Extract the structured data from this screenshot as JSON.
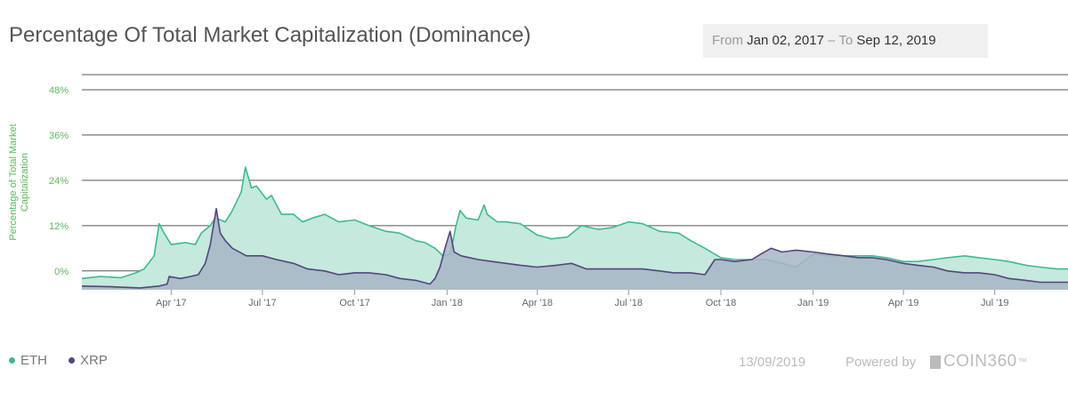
{
  "header": {
    "title": "Percentage Of Total Market Capitalization (Dominance)",
    "from_label": "From",
    "from_date": "Jan 02, 2017",
    "separator": "–",
    "to_label": "To",
    "to_date": "Sep 12, 2019"
  },
  "footer": {
    "date": "13/09/2019",
    "powered_label": "Powered by",
    "logo_text": "COIN360",
    "logo_tm": "™"
  },
  "colors": {
    "eth": "#3dba91",
    "eth_fill": "#c5e9dc",
    "xrp": "#54447f",
    "xrp_fill": "#a6b5c4",
    "axis_label": "#5cb85c",
    "tick": "#666666",
    "grid": "#555555"
  },
  "chart_data": {
    "type": "area",
    "ylabel": "Percentage of Total Market Capitalization",
    "ylim": [
      -5,
      52
    ],
    "y_ticks": [
      0,
      12,
      24,
      36,
      48
    ],
    "y_tick_labels": [
      "0%",
      "12%",
      "24%",
      "36%",
      "48%"
    ],
    "x_tick_labels": [
      "Apr '17",
      "Jul '17",
      "Oct '17",
      "Jan '18",
      "Apr '18",
      "Jul '18",
      "Oct '18",
      "Jan '19",
      "Apr '19",
      "Jul '19"
    ],
    "x_tick_dates": [
      "2017-04-01",
      "2017-07-01",
      "2017-10-01",
      "2018-01-01",
      "2018-04-01",
      "2018-07-01",
      "2018-10-01",
      "2019-01-01",
      "2019-04-01",
      "2019-07-01"
    ],
    "x_range": [
      "2017-01-02",
      "2019-09-12"
    ],
    "grid": true,
    "legend_position": "bottom-left",
    "series": [
      {
        "name": "ETH",
        "points": [
          [
            "2017-01-02",
            -2.0
          ],
          [
            "2017-01-20",
            -1.5
          ],
          [
            "2017-02-10",
            -1.8
          ],
          [
            "2017-02-25",
            -0.5
          ],
          [
            "2017-03-05",
            0.5
          ],
          [
            "2017-03-15",
            4.0
          ],
          [
            "2017-03-20",
            12.5
          ],
          [
            "2017-03-25",
            10.0
          ],
          [
            "2017-04-01",
            7.0
          ],
          [
            "2017-04-15",
            7.5
          ],
          [
            "2017-04-25",
            7.0
          ],
          [
            "2017-05-01",
            10.0
          ],
          [
            "2017-05-10",
            12.0
          ],
          [
            "2017-05-15",
            14.0
          ],
          [
            "2017-05-25",
            13.0
          ],
          [
            "2017-06-01",
            16.0
          ],
          [
            "2017-06-10",
            21.0
          ],
          [
            "2017-06-14",
            27.5
          ],
          [
            "2017-06-20",
            22.0
          ],
          [
            "2017-06-25",
            22.5
          ],
          [
            "2017-07-05",
            19.0
          ],
          [
            "2017-07-10",
            20.0
          ],
          [
            "2017-07-20",
            15.0
          ],
          [
            "2017-08-01",
            15.0
          ],
          [
            "2017-08-10",
            13.0
          ],
          [
            "2017-08-20",
            14.0
          ],
          [
            "2017-09-01",
            15.0
          ],
          [
            "2017-09-15",
            13.0
          ],
          [
            "2017-10-01",
            13.5
          ],
          [
            "2017-10-15",
            12.0
          ],
          [
            "2017-11-01",
            10.5
          ],
          [
            "2017-11-15",
            10.0
          ],
          [
            "2017-12-01",
            8.0
          ],
          [
            "2017-12-10",
            7.5
          ],
          [
            "2017-12-20",
            6.0
          ],
          [
            "2017-12-28",
            4.0
          ],
          [
            "2018-01-04",
            4.5
          ],
          [
            "2018-01-07",
            8.0
          ],
          [
            "2018-01-10",
            12.0
          ],
          [
            "2018-01-14",
            16.0
          ],
          [
            "2018-01-20",
            14.0
          ],
          [
            "2018-02-01",
            13.5
          ],
          [
            "2018-02-07",
            17.5
          ],
          [
            "2018-02-10",
            15.0
          ],
          [
            "2018-02-20",
            13.0
          ],
          [
            "2018-03-01",
            13.0
          ],
          [
            "2018-03-15",
            12.5
          ],
          [
            "2018-04-01",
            9.5
          ],
          [
            "2018-04-15",
            8.5
          ],
          [
            "2018-05-01",
            9.0
          ],
          [
            "2018-05-15",
            12.0
          ],
          [
            "2018-06-01",
            11.0
          ],
          [
            "2018-06-15",
            11.5
          ],
          [
            "2018-07-01",
            13.0
          ],
          [
            "2018-07-15",
            12.5
          ],
          [
            "2018-08-01",
            10.5
          ],
          [
            "2018-08-20",
            10.0
          ],
          [
            "2018-09-01",
            8.0
          ],
          [
            "2018-09-15",
            6.0
          ],
          [
            "2018-10-01",
            3.5
          ],
          [
            "2018-10-15",
            3.0
          ],
          [
            "2018-11-01",
            3.0
          ],
          [
            "2018-11-15",
            3.0
          ],
          [
            "2018-12-01",
            2.0
          ],
          [
            "2018-12-15",
            1.0
          ],
          [
            "2019-01-01",
            4.5
          ],
          [
            "2019-01-15",
            4.0
          ],
          [
            "2019-02-01",
            4.0
          ],
          [
            "2019-02-15",
            4.0
          ],
          [
            "2019-03-01",
            4.0
          ],
          [
            "2019-03-15",
            3.5
          ],
          [
            "2019-04-01",
            2.5
          ],
          [
            "2019-04-15",
            2.5
          ],
          [
            "2019-05-01",
            3.0
          ],
          [
            "2019-05-15",
            3.5
          ],
          [
            "2019-06-01",
            4.0
          ],
          [
            "2019-06-15",
            3.5
          ],
          [
            "2019-07-01",
            3.0
          ],
          [
            "2019-07-15",
            2.5
          ],
          [
            "2019-08-01",
            1.5
          ],
          [
            "2019-08-15",
            1.0
          ],
          [
            "2019-09-01",
            0.5
          ],
          [
            "2019-09-12",
            0.5
          ]
        ]
      },
      {
        "name": "XRP",
        "points": [
          [
            "2017-01-02",
            -4.0
          ],
          [
            "2017-02-01",
            -4.2
          ],
          [
            "2017-03-01",
            -4.5
          ],
          [
            "2017-03-20",
            -4.0
          ],
          [
            "2017-03-28",
            -3.5
          ],
          [
            "2017-03-30",
            -1.5
          ],
          [
            "2017-04-10",
            -2.0
          ],
          [
            "2017-04-20",
            -1.5
          ],
          [
            "2017-04-28",
            -1.0
          ],
          [
            "2017-05-05",
            2.0
          ],
          [
            "2017-05-10",
            7.0
          ],
          [
            "2017-05-16",
            16.5
          ],
          [
            "2017-05-20",
            10.0
          ],
          [
            "2017-05-25",
            8.0
          ],
          [
            "2017-06-01",
            6.0
          ],
          [
            "2017-06-15",
            4.0
          ],
          [
            "2017-07-01",
            4.0
          ],
          [
            "2017-07-15",
            3.0
          ],
          [
            "2017-08-01",
            2.0
          ],
          [
            "2017-08-15",
            0.5
          ],
          [
            "2017-09-01",
            0.0
          ],
          [
            "2017-09-15",
            -1.0
          ],
          [
            "2017-10-01",
            -0.5
          ],
          [
            "2017-10-15",
            -0.5
          ],
          [
            "2017-11-01",
            -1.0
          ],
          [
            "2017-11-15",
            -2.0
          ],
          [
            "2017-12-01",
            -2.5
          ],
          [
            "2017-12-15",
            -3.5
          ],
          [
            "2017-12-20",
            -2.0
          ],
          [
            "2017-12-25",
            1.0
          ],
          [
            "2017-12-30",
            6.0
          ],
          [
            "2018-01-04",
            10.5
          ],
          [
            "2018-01-08",
            5.0
          ],
          [
            "2018-01-15",
            4.0
          ],
          [
            "2018-02-01",
            3.0
          ],
          [
            "2018-02-15",
            2.5
          ],
          [
            "2018-03-01",
            2.0
          ],
          [
            "2018-03-15",
            1.5
          ],
          [
            "2018-04-01",
            1.0
          ],
          [
            "2018-04-20",
            1.5
          ],
          [
            "2018-05-05",
            2.0
          ],
          [
            "2018-05-20",
            0.5
          ],
          [
            "2018-06-01",
            0.5
          ],
          [
            "2018-06-15",
            0.5
          ],
          [
            "2018-07-01",
            0.5
          ],
          [
            "2018-07-15",
            0.5
          ],
          [
            "2018-08-01",
            0.0
          ],
          [
            "2018-08-15",
            -0.5
          ],
          [
            "2018-09-01",
            -0.5
          ],
          [
            "2018-09-15",
            -1.0
          ],
          [
            "2018-09-20",
            1.0
          ],
          [
            "2018-09-25",
            3.0
          ],
          [
            "2018-10-01",
            3.0
          ],
          [
            "2018-10-15",
            2.5
          ],
          [
            "2018-11-01",
            3.0
          ],
          [
            "2018-11-10",
            4.5
          ],
          [
            "2018-11-20",
            6.0
          ],
          [
            "2018-12-01",
            5.0
          ],
          [
            "2018-12-15",
            5.5
          ],
          [
            "2019-01-01",
            5.0
          ],
          [
            "2019-01-15",
            4.5
          ],
          [
            "2019-02-01",
            4.0
          ],
          [
            "2019-02-15",
            3.5
          ],
          [
            "2019-03-01",
            3.5
          ],
          [
            "2019-03-15",
            3.0
          ],
          [
            "2019-04-01",
            2.0
          ],
          [
            "2019-04-15",
            1.5
          ],
          [
            "2019-05-01",
            1.0
          ],
          [
            "2019-05-15",
            0.0
          ],
          [
            "2019-06-01",
            -0.5
          ],
          [
            "2019-06-15",
            -0.5
          ],
          [
            "2019-07-01",
            -1.0
          ],
          [
            "2019-07-15",
            -2.0
          ],
          [
            "2019-08-01",
            -2.5
          ],
          [
            "2019-08-15",
            -3.0
          ],
          [
            "2019-09-12",
            -3.0
          ]
        ]
      }
    ]
  }
}
